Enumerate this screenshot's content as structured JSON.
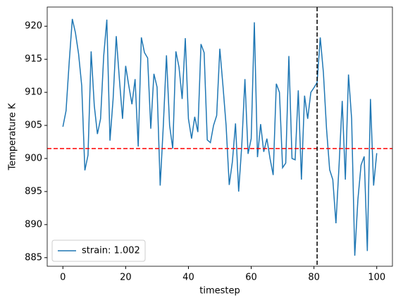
{
  "chart_data": {
    "type": "line",
    "x_label": "timestep",
    "y_label": "Temperature K",
    "x": [
      0,
      1,
      2,
      3,
      4,
      5,
      6,
      7,
      8,
      9,
      10,
      11,
      12,
      13,
      14,
      15,
      16,
      17,
      18,
      19,
      20,
      21,
      22,
      23,
      24,
      25,
      26,
      27,
      28,
      29,
      30,
      31,
      32,
      33,
      34,
      35,
      36,
      37,
      38,
      39,
      40,
      41,
      42,
      43,
      44,
      45,
      46,
      47,
      48,
      49,
      50,
      51,
      52,
      53,
      54,
      55,
      56,
      57,
      58,
      59,
      60,
      61,
      62,
      63,
      64,
      65,
      66,
      67,
      68,
      69,
      70,
      71,
      72,
      73,
      74,
      75,
      76,
      77,
      78,
      79,
      80,
      81,
      82,
      83,
      84,
      85,
      86,
      87,
      88,
      89,
      90,
      91,
      92,
      93,
      94,
      95,
      96,
      97,
      98,
      99,
      100
    ],
    "series": [
      {
        "name": "strain: 1.002",
        "color": "#1f77b4",
        "values": [
          904.8,
          907.2,
          914.5,
          921.1,
          919.0,
          915.8,
          911.0,
          898.2,
          900.5,
          916.2,
          908.0,
          903.7,
          906.0,
          915.5,
          921.0,
          902.7,
          909.0,
          918.5,
          912.0,
          906.0,
          914.0,
          911.0,
          908.2,
          912.0,
          901.8,
          918.3,
          916.0,
          915.2,
          904.5,
          912.8,
          910.8,
          895.9,
          905.0,
          915.6,
          905.0,
          901.5,
          916.2,
          913.8,
          909.0,
          918.2,
          906.0,
          903.0,
          906.3,
          904.0,
          917.3,
          916.0,
          902.8,
          902.4,
          905.0,
          906.5,
          916.6,
          911.0,
          905.0,
          896.0,
          899.5,
          905.3,
          895.0,
          902.0,
          912.0,
          900.7,
          903.0,
          920.6,
          900.2,
          905.2,
          901.0,
          903.0,
          900.0,
          897.5,
          911.3,
          910.0,
          898.6,
          899.3,
          915.5,
          900.0,
          899.8,
          910.3,
          896.8,
          909.5,
          906.0,
          910.0,
          910.7,
          911.5,
          918.3,
          913.0,
          904.5,
          898.3,
          896.8,
          890.2,
          899.0,
          908.7,
          896.8,
          912.7,
          906.0,
          885.3,
          893.8,
          899.0,
          900.3,
          886.0,
          909.0,
          895.9,
          900.8
        ]
      }
    ],
    "hline": {
      "value": 901.5,
      "color": "#ff0000"
    },
    "vline": {
      "value": 81,
      "color": "#000000"
    },
    "xlim": [
      -5,
      105
    ],
    "ylim": [
      883.7,
      922.9
    ],
    "xticks": [
      0,
      20,
      40,
      60,
      80,
      100
    ],
    "yticks": [
      885,
      890,
      895,
      900,
      905,
      910,
      915,
      920
    ],
    "legend": "lower left"
  }
}
